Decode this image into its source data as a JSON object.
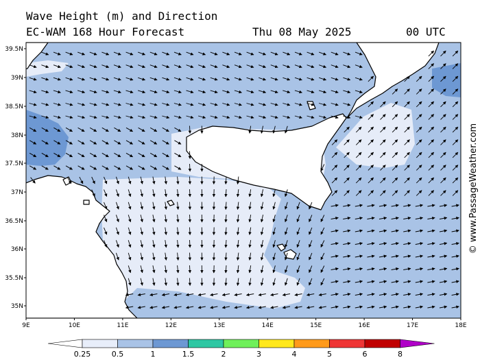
{
  "header": {
    "line1": "Wave Height (m) and Direction",
    "line2_left": "EC-WAM 168 Hour Forecast",
    "line2_date": "Thu 08 May 2025",
    "line2_time": "00 UTC"
  },
  "axes": {
    "lat_labels": [
      "39.5N",
      "39N",
      "38.5N",
      "38N",
      "37.5N",
      "37N",
      "36.5N",
      "36N",
      "35.5N",
      "35N"
    ],
    "lon_labels": [
      "9E",
      "10E",
      "11E",
      "12E",
      "13E",
      "14E",
      "15E",
      "16E",
      "17E",
      "18E"
    ]
  },
  "credit": "© www.PassageWeather.com",
  "legend": {
    "labels": [
      "0.25",
      "0.5",
      "1",
      "1.5",
      "2",
      "3",
      "4",
      "5",
      "6",
      "8"
    ],
    "colors": [
      "#e8eefa",
      "#a9c3e6",
      "#6d98d3",
      "#2ec7a3",
      "#6ff05a",
      "#ffe81c",
      "#ff9a1a",
      "#ef3535",
      "#c00000",
      "#b000c8"
    ]
  },
  "palette": {
    "land": "#ffffff",
    "sea_lowest": "#e6ecf8",
    "sea_low": "#a9c3e6",
    "sea_mid": "#6d98d3"
  }
}
